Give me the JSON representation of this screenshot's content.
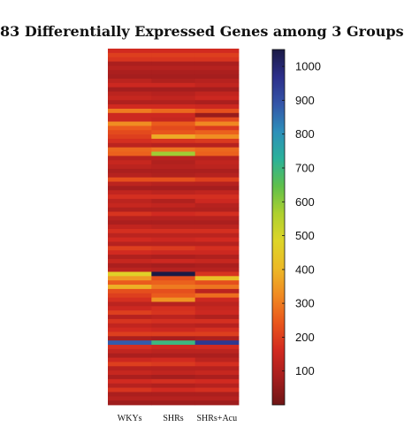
{
  "chart_data": {
    "type": "heatmap",
    "title": "83 Differentially Expressed Genes among 3 Groups",
    "columns": [
      "WKYs",
      "SHRs",
      "SHRs+Acu"
    ],
    "row_count": 83,
    "rows": [
      [
        160,
        160,
        160
      ],
      [
        200,
        200,
        200
      ],
      [
        180,
        180,
        180
      ],
      [
        90,
        90,
        90
      ],
      [
        110,
        110,
        110
      ],
      [
        90,
        90,
        90
      ],
      [
        80,
        80,
        80
      ],
      [
        120,
        100,
        110
      ],
      [
        150,
        150,
        130
      ],
      [
        80,
        80,
        80
      ],
      [
        120,
        110,
        130
      ],
      [
        140,
        130,
        150
      ],
      [
        100,
        100,
        90
      ],
      [
        160,
        160,
        150
      ],
      [
        300,
        270,
        230
      ],
      [
        150,
        150,
        60
      ],
      [
        150,
        140,
        220
      ],
      [
        330,
        250,
        320
      ],
      [
        250,
        220,
        190
      ],
      [
        220,
        240,
        260
      ],
      [
        200,
        380,
        330
      ],
      [
        170,
        180,
        190
      ],
      [
        120,
        110,
        110
      ],
      [
        270,
        290,
        270
      ],
      [
        260,
        580,
        260
      ],
      [
        110,
        110,
        110
      ],
      [
        140,
        100,
        130
      ],
      [
        120,
        110,
        120
      ],
      [
        90,
        90,
        90
      ],
      [
        110,
        100,
        110
      ],
      [
        230,
        230,
        200
      ],
      [
        120,
        110,
        110
      ],
      [
        80,
        80,
        80
      ],
      [
        130,
        120,
        130
      ],
      [
        170,
        170,
        170
      ],
      [
        120,
        100,
        150
      ],
      [
        140,
        130,
        110
      ],
      [
        100,
        100,
        100
      ],
      [
        180,
        160,
        170
      ],
      [
        110,
        110,
        110
      ],
      [
        90,
        90,
        90
      ],
      [
        130,
        120,
        120
      ],
      [
        170,
        170,
        170
      ],
      [
        120,
        120,
        120
      ],
      [
        160,
        150,
        160
      ],
      [
        110,
        110,
        110
      ],
      [
        200,
        190,
        170
      ],
      [
        160,
        150,
        150
      ],
      [
        100,
        90,
        100
      ],
      [
        140,
        150,
        140
      ],
      [
        90,
        80,
        90
      ],
      [
        120,
        110,
        110
      ],
      [
        470,
        1050,
        180
      ],
      [
        350,
        230,
        420
      ],
      [
        250,
        260,
        230
      ],
      [
        390,
        300,
        290
      ],
      [
        230,
        230,
        120
      ],
      [
        200,
        250,
        280
      ],
      [
        170,
        340,
        150
      ],
      [
        120,
        110,
        120
      ],
      [
        150,
        170,
        140
      ],
      [
        200,
        180,
        150
      ],
      [
        110,
        120,
        100
      ],
      [
        180,
        170,
        170
      ],
      [
        130,
        120,
        110
      ],
      [
        160,
        150,
        170
      ],
      [
        200,
        200,
        200
      ],
      [
        90,
        80,
        90
      ],
      [
        880,
        700,
        950
      ],
      [
        170,
        150,
        160
      ],
      [
        130,
        120,
        120
      ],
      [
        90,
        90,
        90
      ],
      [
        150,
        160,
        120
      ],
      [
        200,
        190,
        170
      ],
      [
        110,
        110,
        110
      ],
      [
        140,
        130,
        140
      ],
      [
        90,
        80,
        90
      ],
      [
        160,
        170,
        160
      ],
      [
        110,
        100,
        110
      ],
      [
        180,
        160,
        170
      ],
      [
        90,
        90,
        90
      ],
      [
        110,
        110,
        110
      ],
      [
        70,
        70,
        70
      ]
    ],
    "colorbar": {
      "min": 0,
      "max": 1050,
      "ticks": [
        100,
        200,
        300,
        400,
        500,
        600,
        700,
        800,
        900,
        1000
      ],
      "colors": [
        "#6f1616",
        "#a61e1e",
        "#d22a20",
        "#e9561c",
        "#f08a22",
        "#ecb927",
        "#ddd528",
        "#aed02f",
        "#5fc04b",
        "#2ab19a",
        "#2d8fba",
        "#3455a8",
        "#2c2f8a",
        "#1b1a45"
      ]
    }
  }
}
